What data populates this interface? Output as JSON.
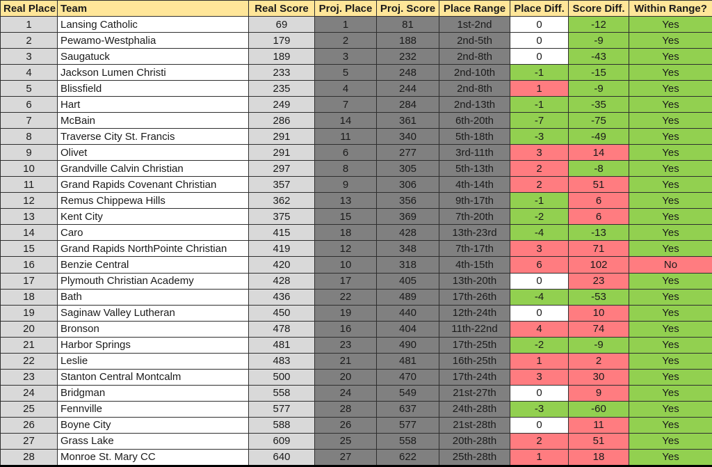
{
  "colors": {
    "header_bg": "#FFE699",
    "light_gray": "#D9D9D9",
    "dark_gray": "#808080",
    "green": "#92D050",
    "red": "#FF7C80",
    "white": "#FFFFFF"
  },
  "table": {
    "columns": [
      "Real Place",
      "Team",
      "Real Score",
      "Proj. Place",
      "Proj. Score",
      "Place Range",
      "Place Diff.",
      "Score Diff.",
      "Within Range?"
    ],
    "rows": [
      {
        "real_place": 1,
        "team": "Lansing Catholic",
        "real_score": 69,
        "proj_place": 1,
        "proj_score": 81,
        "place_range": "1st-2nd",
        "place_diff": 0,
        "score_diff": -12,
        "within_range": "Yes"
      },
      {
        "real_place": 2,
        "team": "Pewamo-Westphalia",
        "real_score": 179,
        "proj_place": 2,
        "proj_score": 188,
        "place_range": "2nd-5th",
        "place_diff": 0,
        "score_diff": -9,
        "within_range": "Yes"
      },
      {
        "real_place": 3,
        "team": "Saugatuck",
        "real_score": 189,
        "proj_place": 3,
        "proj_score": 232,
        "place_range": "2nd-8th",
        "place_diff": 0,
        "score_diff": -43,
        "within_range": "Yes"
      },
      {
        "real_place": 4,
        "team": "Jackson Lumen Christi",
        "real_score": 233,
        "proj_place": 5,
        "proj_score": 248,
        "place_range": "2nd-10th",
        "place_diff": -1,
        "score_diff": -15,
        "within_range": "Yes"
      },
      {
        "real_place": 5,
        "team": "Blissfield",
        "real_score": 235,
        "proj_place": 4,
        "proj_score": 244,
        "place_range": "2nd-8th",
        "place_diff": 1,
        "score_diff": -9,
        "within_range": "Yes"
      },
      {
        "real_place": 6,
        "team": "Hart",
        "real_score": 249,
        "proj_place": 7,
        "proj_score": 284,
        "place_range": "2nd-13th",
        "place_diff": -1,
        "score_diff": -35,
        "within_range": "Yes"
      },
      {
        "real_place": 7,
        "team": "McBain",
        "real_score": 286,
        "proj_place": 14,
        "proj_score": 361,
        "place_range": "6th-20th",
        "place_diff": -7,
        "score_diff": -75,
        "within_range": "Yes"
      },
      {
        "real_place": 8,
        "team": "Traverse City St. Francis",
        "real_score": 291,
        "proj_place": 11,
        "proj_score": 340,
        "place_range": "5th-18th",
        "place_diff": -3,
        "score_diff": -49,
        "within_range": "Yes"
      },
      {
        "real_place": 9,
        "team": "Olivet",
        "real_score": 291,
        "proj_place": 6,
        "proj_score": 277,
        "place_range": "3rd-11th",
        "place_diff": 3,
        "score_diff": 14,
        "within_range": "Yes"
      },
      {
        "real_place": 10,
        "team": "Grandville Calvin Christian",
        "real_score": 297,
        "proj_place": 8,
        "proj_score": 305,
        "place_range": "5th-13th",
        "place_diff": 2,
        "score_diff": -8,
        "within_range": "Yes"
      },
      {
        "real_place": 11,
        "team": "Grand Rapids Covenant Christian",
        "real_score": 357,
        "proj_place": 9,
        "proj_score": 306,
        "place_range": "4th-14th",
        "place_diff": 2,
        "score_diff": 51,
        "within_range": "Yes"
      },
      {
        "real_place": 12,
        "team": "Remus Chippewa Hills",
        "real_score": 362,
        "proj_place": 13,
        "proj_score": 356,
        "place_range": "9th-17th",
        "place_diff": -1,
        "score_diff": 6,
        "within_range": "Yes"
      },
      {
        "real_place": 13,
        "team": "Kent City",
        "real_score": 375,
        "proj_place": 15,
        "proj_score": 369,
        "place_range": "7th-20th",
        "place_diff": -2,
        "score_diff": 6,
        "within_range": "Yes"
      },
      {
        "real_place": 14,
        "team": "Caro",
        "real_score": 415,
        "proj_place": 18,
        "proj_score": 428,
        "place_range": "13th-23rd",
        "place_diff": -4,
        "score_diff": -13,
        "within_range": "Yes"
      },
      {
        "real_place": 15,
        "team": "Grand Rapids NorthPointe Christian",
        "real_score": 419,
        "proj_place": 12,
        "proj_score": 348,
        "place_range": "7th-17th",
        "place_diff": 3,
        "score_diff": 71,
        "within_range": "Yes"
      },
      {
        "real_place": 16,
        "team": "Benzie Central",
        "real_score": 420,
        "proj_place": 10,
        "proj_score": 318,
        "place_range": "4th-15th",
        "place_diff": 6,
        "score_diff": 102,
        "within_range": "No"
      },
      {
        "real_place": 17,
        "team": "Plymouth Christian Academy",
        "real_score": 428,
        "proj_place": 17,
        "proj_score": 405,
        "place_range": "13th-20th",
        "place_diff": 0,
        "score_diff": 23,
        "within_range": "Yes"
      },
      {
        "real_place": 18,
        "team": "Bath",
        "real_score": 436,
        "proj_place": 22,
        "proj_score": 489,
        "place_range": "17th-26th",
        "place_diff": -4,
        "score_diff": -53,
        "within_range": "Yes"
      },
      {
        "real_place": 19,
        "team": "Saginaw Valley Lutheran",
        "real_score": 450,
        "proj_place": 19,
        "proj_score": 440,
        "place_range": "12th-24th",
        "place_diff": 0,
        "score_diff": 10,
        "within_range": "Yes"
      },
      {
        "real_place": 20,
        "team": "Bronson",
        "real_score": 478,
        "proj_place": 16,
        "proj_score": 404,
        "place_range": "11th-22nd",
        "place_diff": 4,
        "score_diff": 74,
        "within_range": "Yes"
      },
      {
        "real_place": 21,
        "team": "Harbor Springs",
        "real_score": 481,
        "proj_place": 23,
        "proj_score": 490,
        "place_range": "17th-25th",
        "place_diff": -2,
        "score_diff": -9,
        "within_range": "Yes"
      },
      {
        "real_place": 22,
        "team": "Leslie",
        "real_score": 483,
        "proj_place": 21,
        "proj_score": 481,
        "place_range": "16th-25th",
        "place_diff": 1,
        "score_diff": 2,
        "within_range": "Yes"
      },
      {
        "real_place": 23,
        "team": "Stanton Central Montcalm",
        "real_score": 500,
        "proj_place": 20,
        "proj_score": 470,
        "place_range": "17th-24th",
        "place_diff": 3,
        "score_diff": 30,
        "within_range": "Yes"
      },
      {
        "real_place": 24,
        "team": "Bridgman",
        "real_score": 558,
        "proj_place": 24,
        "proj_score": 549,
        "place_range": "21st-27th",
        "place_diff": 0,
        "score_diff": 9,
        "within_range": "Yes"
      },
      {
        "real_place": 25,
        "team": "Fennville",
        "real_score": 577,
        "proj_place": 28,
        "proj_score": 637,
        "place_range": "24th-28th",
        "place_diff": -3,
        "score_diff": -60,
        "within_range": "Yes"
      },
      {
        "real_place": 26,
        "team": "Boyne City",
        "real_score": 588,
        "proj_place": 26,
        "proj_score": 577,
        "place_range": "21st-28th",
        "place_diff": 0,
        "score_diff": 11,
        "within_range": "Yes"
      },
      {
        "real_place": 27,
        "team": "Grass Lake",
        "real_score": 609,
        "proj_place": 25,
        "proj_score": 558,
        "place_range": "20th-28th",
        "place_diff": 2,
        "score_diff": 51,
        "within_range": "Yes"
      },
      {
        "real_place": 28,
        "team": "Monroe St. Mary CC",
        "real_score": 640,
        "proj_place": 27,
        "proj_score": 622,
        "place_range": "25th-28th",
        "place_diff": 1,
        "score_diff": 18,
        "within_range": "Yes"
      }
    ]
  }
}
